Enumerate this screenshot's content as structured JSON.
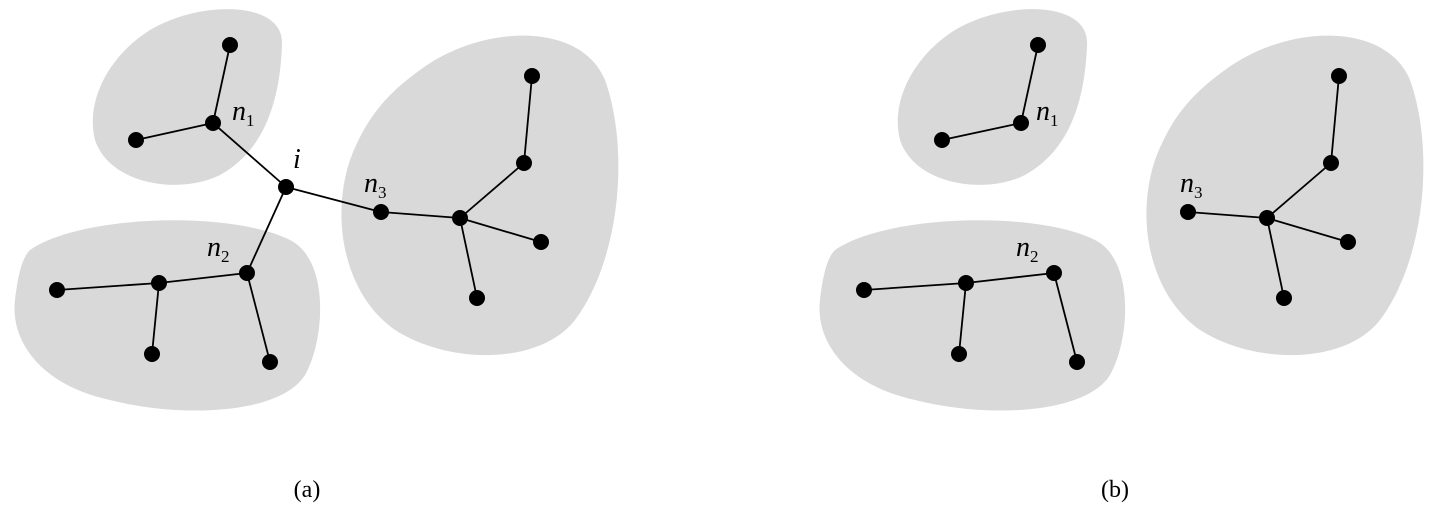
{
  "panels": [
    {
      "id": "a",
      "caption": "(a)",
      "hub_label": "i",
      "labels": [
        {
          "base": "n",
          "sub": "1"
        },
        {
          "base": "n",
          "sub": "2"
        },
        {
          "base": "n",
          "sub": "3"
        }
      ]
    },
    {
      "id": "b",
      "caption": "(b)",
      "labels": [
        {
          "base": "n",
          "sub": "1"
        },
        {
          "base": "n",
          "sub": "2"
        },
        {
          "base": "n",
          "sub": "3"
        }
      ]
    }
  ],
  "colors": {
    "cluster_fill": "#d9d9d9",
    "node": "#000000",
    "edge": "#000000"
  }
}
